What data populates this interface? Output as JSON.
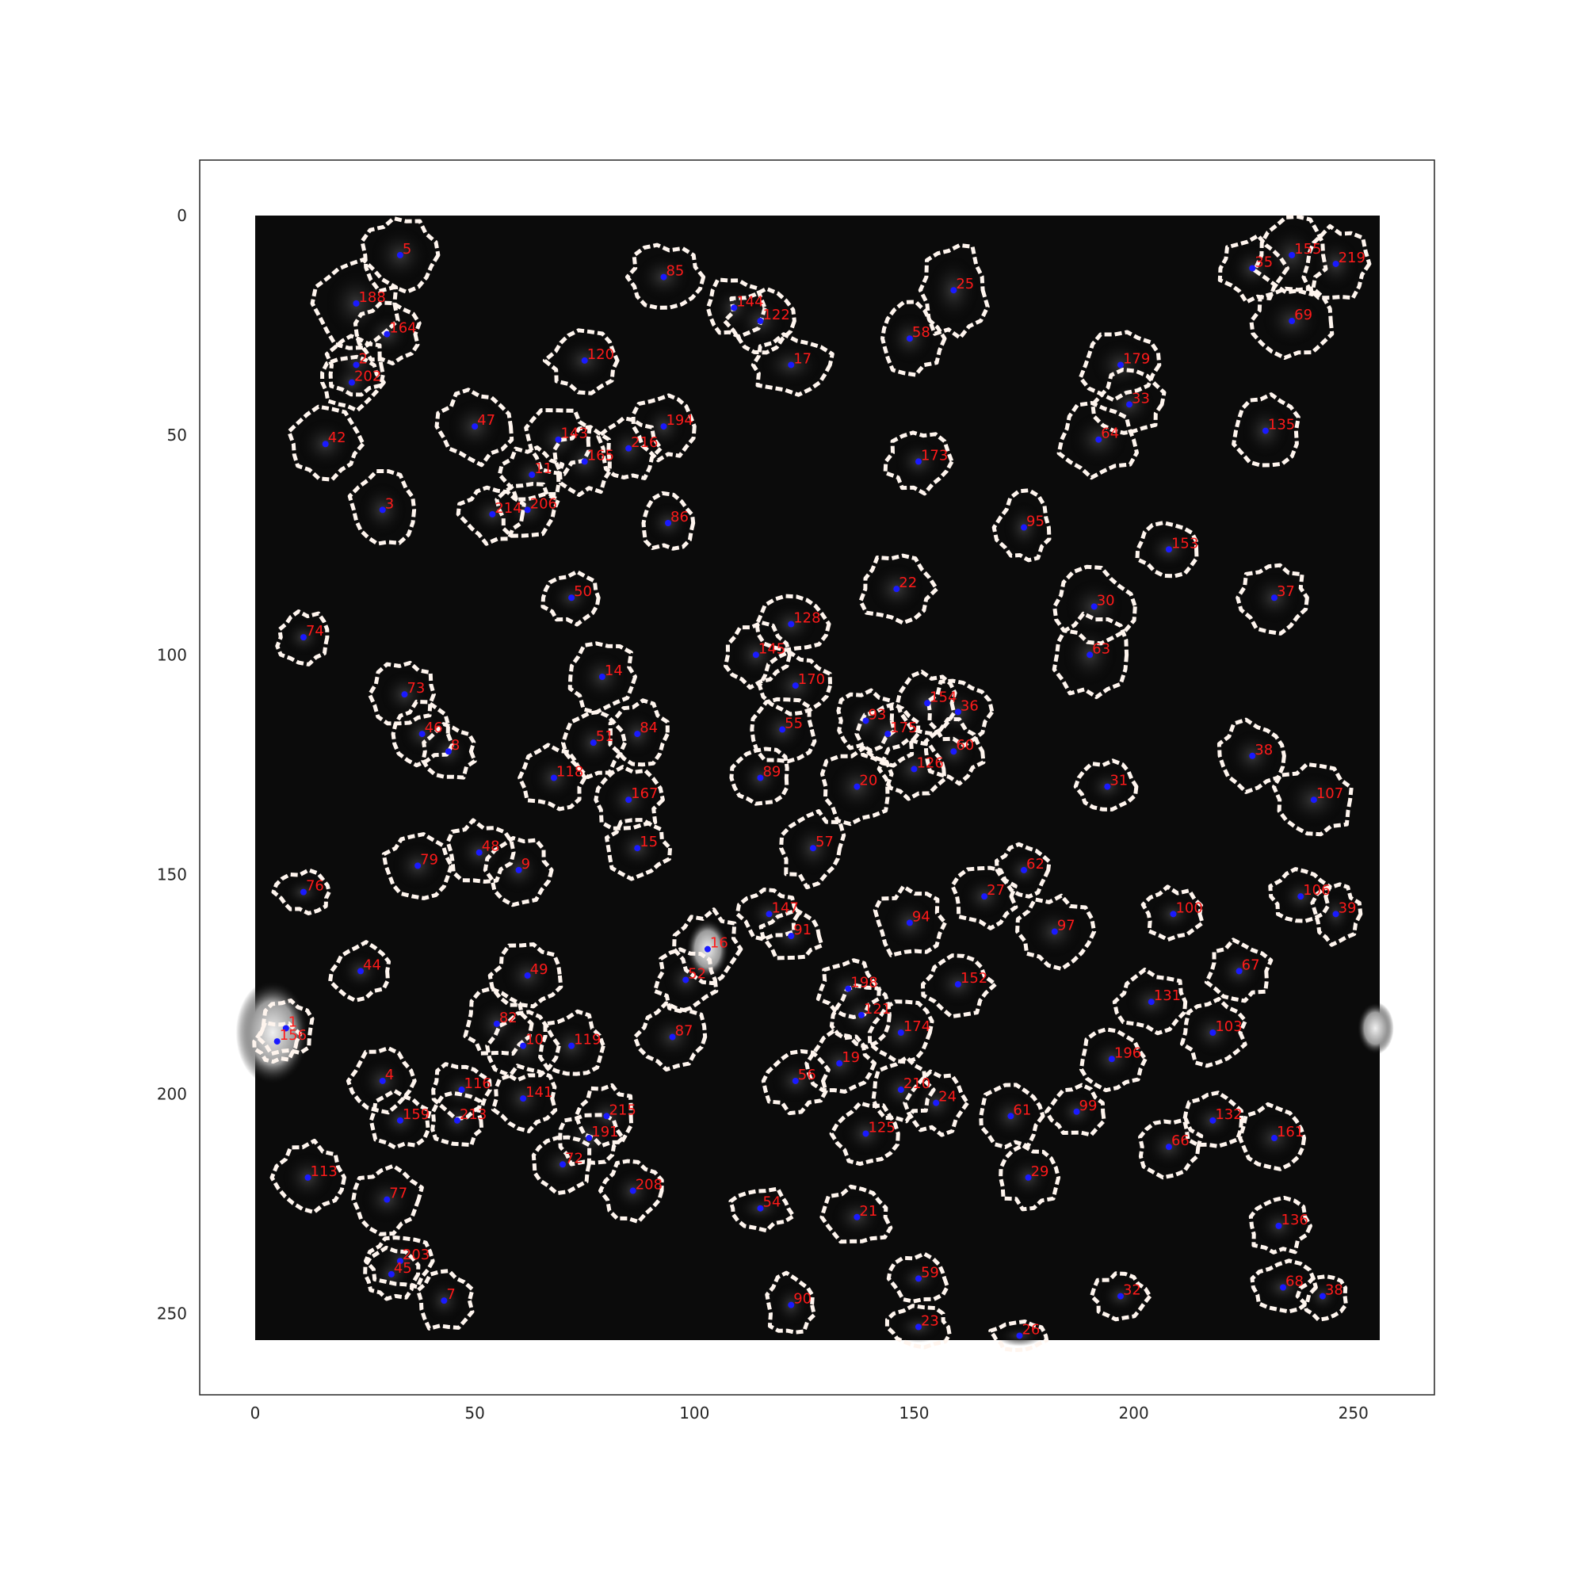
{
  "image": {
    "x_range": [
      0,
      256
    ],
    "y_range": [
      0,
      256
    ],
    "background": "#000000",
    "outline_color": "#fff5ee",
    "centroid_color": "#1a1aff",
    "label_color": "#ff1a1a",
    "frame_color": "#262626"
  },
  "axes": {
    "x_ticks": [
      {
        "value": 0,
        "label": "0"
      },
      {
        "value": 50,
        "label": "50"
      },
      {
        "value": 100,
        "label": "100"
      },
      {
        "value": 150,
        "label": "150"
      },
      {
        "value": 200,
        "label": "200"
      },
      {
        "value": 250,
        "label": "250"
      }
    ],
    "y_ticks": [
      {
        "value": 0,
        "label": "0"
      },
      {
        "value": 50,
        "label": "50"
      },
      {
        "value": 100,
        "label": "100"
      },
      {
        "value": 150,
        "label": "150"
      },
      {
        "value": 200,
        "label": "200"
      },
      {
        "value": 250,
        "label": "250"
      }
    ]
  },
  "rois": [
    {
      "id": "5",
      "x": 33,
      "y": 9,
      "w": 17,
      "h": 17
    },
    {
      "id": "188",
      "x": 23,
      "y": 20,
      "w": 18,
      "h": 20
    },
    {
      "id": "164",
      "x": 30,
      "y": 27,
      "w": 14,
      "h": 13
    },
    {
      "id": "2",
      "x": 23,
      "y": 34,
      "w": 13,
      "h": 13
    },
    {
      "id": "202",
      "x": 22,
      "y": 38,
      "w": 13,
      "h": 12
    },
    {
      "id": "42",
      "x": 16,
      "y": 52,
      "w": 16,
      "h": 15
    },
    {
      "id": "47",
      "x": 50,
      "y": 48,
      "w": 16,
      "h": 16
    },
    {
      "id": "143",
      "x": 69,
      "y": 51,
      "w": 14,
      "h": 14
    },
    {
      "id": "11",
      "x": 63,
      "y": 59,
      "w": 13,
      "h": 12
    },
    {
      "id": "165",
      "x": 75,
      "y": 56,
      "w": 13,
      "h": 14
    },
    {
      "id": "216",
      "x": 85,
      "y": 53,
      "w": 13,
      "h": 14
    },
    {
      "id": "194",
      "x": 93,
      "y": 48,
      "w": 13,
      "h": 14
    },
    {
      "id": "3",
      "x": 29,
      "y": 67,
      "w": 14,
      "h": 16
    },
    {
      "id": "214",
      "x": 54,
      "y": 68,
      "w": 14,
      "h": 12
    },
    {
      "id": "206",
      "x": 62,
      "y": 67,
      "w": 13,
      "h": 12
    },
    {
      "id": "86",
      "x": 94,
      "y": 70,
      "w": 13,
      "h": 12
    },
    {
      "id": "85",
      "x": 93,
      "y": 14,
      "w": 16,
      "h": 14
    },
    {
      "id": "144",
      "x": 109,
      "y": 21,
      "w": 13,
      "h": 13
    },
    {
      "id": "122",
      "x": 115,
      "y": 24,
      "w": 15,
      "h": 14
    },
    {
      "id": "17",
      "x": 122,
      "y": 34,
      "w": 18,
      "h": 13
    },
    {
      "id": "120",
      "x": 75,
      "y": 33,
      "w": 16,
      "h": 14
    },
    {
      "id": "25",
      "x": 159,
      "y": 17,
      "w": 15,
      "h": 20
    },
    {
      "id": "58",
      "x": 149,
      "y": 28,
      "w": 14,
      "h": 15
    },
    {
      "id": "173",
      "x": 151,
      "y": 56,
      "w": 14,
      "h": 13
    },
    {
      "id": "179",
      "x": 197,
      "y": 34,
      "w": 17,
      "h": 15
    },
    {
      "id": "33",
      "x": 199,
      "y": 43,
      "w": 15,
      "h": 14
    },
    {
      "id": "64",
      "x": 192,
      "y": 51,
      "w": 17,
      "h": 16
    },
    {
      "id": "155",
      "x": 236,
      "y": 9,
      "w": 16,
      "h": 18
    },
    {
      "id": "35",
      "x": 227,
      "y": 12,
      "w": 14,
      "h": 14
    },
    {
      "id": "219",
      "x": 246,
      "y": 11,
      "w": 14,
      "h": 16
    },
    {
      "id": "69",
      "x": 236,
      "y": 24,
      "w": 17,
      "h": 15
    },
    {
      "id": "135",
      "x": 230,
      "y": 49,
      "w": 14,
      "h": 16
    },
    {
      "id": "95",
      "x": 175,
      "y": 71,
      "w": 12,
      "h": 15
    },
    {
      "id": "153",
      "x": 208,
      "y": 76,
      "w": 14,
      "h": 12
    },
    {
      "id": "22",
      "x": 146,
      "y": 85,
      "w": 16,
      "h": 15
    },
    {
      "id": "30",
      "x": 191,
      "y": 89,
      "w": 17,
      "h": 16
    },
    {
      "id": "63",
      "x": 190,
      "y": 100,
      "w": 16,
      "h": 18
    },
    {
      "id": "37",
      "x": 232,
      "y": 87,
      "w": 15,
      "h": 15
    },
    {
      "id": "50",
      "x": 72,
      "y": 87,
      "w": 13,
      "h": 11
    },
    {
      "id": "74",
      "x": 11,
      "y": 96,
      "w": 12,
      "h": 11
    },
    {
      "id": "128",
      "x": 122,
      "y": 93,
      "w": 15,
      "h": 13
    },
    {
      "id": "145",
      "x": 114,
      "y": 100,
      "w": 14,
      "h": 14
    },
    {
      "id": "170",
      "x": 123,
      "y": 107,
      "w": 15,
      "h": 14
    },
    {
      "id": "14",
      "x": 79,
      "y": 105,
      "w": 15,
      "h": 15
    },
    {
      "id": "73",
      "x": 34,
      "y": 109,
      "w": 14,
      "h": 14
    },
    {
      "id": "46",
      "x": 38,
      "y": 118,
      "w": 13,
      "h": 13
    },
    {
      "id": "8",
      "x": 44,
      "y": 122,
      "w": 12,
      "h": 12
    },
    {
      "id": "51",
      "x": 77,
      "y": 120,
      "w": 13,
      "h": 14
    },
    {
      "id": "84",
      "x": 87,
      "y": 118,
      "w": 13,
      "h": 14
    },
    {
      "id": "118",
      "x": 68,
      "y": 128,
      "w": 14,
      "h": 14
    },
    {
      "id": "55",
      "x": 120,
      "y": 117,
      "w": 14,
      "h": 14
    },
    {
      "id": "93",
      "x": 139,
      "y": 115,
      "w": 13,
      "h": 13
    },
    {
      "id": "154",
      "x": 153,
      "y": 111,
      "w": 13,
      "h": 13
    },
    {
      "id": "36",
      "x": 160,
      "y": 113,
      "w": 14,
      "h": 14
    },
    {
      "id": "175",
      "x": 144,
      "y": 118,
      "w": 13,
      "h": 13
    },
    {
      "id": "60",
      "x": 159,
      "y": 122,
      "w": 13,
      "h": 13
    },
    {
      "id": "126",
      "x": 150,
      "y": 126,
      "w": 14,
      "h": 13
    },
    {
      "id": "89",
      "x": 115,
      "y": 128,
      "w": 13,
      "h": 13
    },
    {
      "id": "20",
      "x": 137,
      "y": 130,
      "w": 16,
      "h": 16
    },
    {
      "id": "167",
      "x": 85,
      "y": 133,
      "w": 14,
      "h": 14
    },
    {
      "id": "15",
      "x": 87,
      "y": 144,
      "w": 14,
      "h": 13
    },
    {
      "id": "31",
      "x": 194,
      "y": 130,
      "w": 13,
      "h": 11
    },
    {
      "id": "38",
      "x": 227,
      "y": 123,
      "w": 15,
      "h": 15
    },
    {
      "id": "107",
      "x": 241,
      "y": 133,
      "w": 18,
      "h": 16
    },
    {
      "id": "57",
      "x": 127,
      "y": 144,
      "w": 14,
      "h": 16
    },
    {
      "id": "48",
      "x": 51,
      "y": 145,
      "w": 14,
      "h": 13
    },
    {
      "id": "9",
      "x": 60,
      "y": 149,
      "w": 14,
      "h": 14
    },
    {
      "id": "79",
      "x": 37,
      "y": 148,
      "w": 15,
      "h": 14
    },
    {
      "id": "76",
      "x": 11,
      "y": 154,
      "w": 12,
      "h": 9
    },
    {
      "id": "62",
      "x": 175,
      "y": 149,
      "w": 12,
      "h": 11
    },
    {
      "id": "27",
      "x": 166,
      "y": 155,
      "w": 14,
      "h": 13
    },
    {
      "id": "97",
      "x": 182,
      "y": 163,
      "w": 16,
      "h": 15
    },
    {
      "id": "94",
      "x": 149,
      "y": 161,
      "w": 15,
      "h": 15
    },
    {
      "id": "147",
      "x": 117,
      "y": 159,
      "w": 13,
      "h": 11
    },
    {
      "id": "91",
      "x": 122,
      "y": 164,
      "w": 13,
      "h": 11
    },
    {
      "id": "100",
      "x": 209,
      "y": 159,
      "w": 13,
      "h": 11
    },
    {
      "id": "106",
      "x": 238,
      "y": 155,
      "w": 13,
      "h": 12
    },
    {
      "id": "39",
      "x": 246,
      "y": 159,
      "w": 10,
      "h": 13
    },
    {
      "id": "16",
      "x": 103,
      "y": 167,
      "w": 14,
      "h": 16
    },
    {
      "id": "52",
      "x": 98,
      "y": 174,
      "w": 13,
      "h": 13
    },
    {
      "id": "49",
      "x": 62,
      "y": 173,
      "w": 15,
      "h": 14
    },
    {
      "id": "44",
      "x": 24,
      "y": 172,
      "w": 13,
      "h": 12
    },
    {
      "id": "67",
      "x": 224,
      "y": 172,
      "w": 14,
      "h": 13
    },
    {
      "id": "152",
      "x": 160,
      "y": 175,
      "w": 15,
      "h": 13
    },
    {
      "id": "198",
      "x": 135,
      "y": 176,
      "w": 13,
      "h": 12
    },
    {
      "id": "131",
      "x": 204,
      "y": 179,
      "w": 15,
      "h": 13
    },
    {
      "id": "121",
      "x": 138,
      "y": 182,
      "w": 13,
      "h": 13
    },
    {
      "id": "1",
      "x": 7,
      "y": 185,
      "w": 12,
      "h": 12
    },
    {
      "id": "156",
      "x": 5,
      "y": 188,
      "w": 10,
      "h": 9
    },
    {
      "id": "82",
      "x": 55,
      "y": 184,
      "w": 14,
      "h": 15
    },
    {
      "id": "10",
      "x": 61,
      "y": 189,
      "w": 15,
      "h": 15
    },
    {
      "id": "119",
      "x": 72,
      "y": 189,
      "w": 14,
      "h": 14
    },
    {
      "id": "87",
      "x": 95,
      "y": 187,
      "w": 15,
      "h": 14
    },
    {
      "id": "174",
      "x": 147,
      "y": 186,
      "w": 14,
      "h": 14
    },
    {
      "id": "103",
      "x": 218,
      "y": 186,
      "w": 14,
      "h": 14
    },
    {
      "id": "19",
      "x": 133,
      "y": 193,
      "w": 14,
      "h": 13
    },
    {
      "id": "196",
      "x": 195,
      "y": 192,
      "w": 14,
      "h": 13
    },
    {
      "id": "4",
      "x": 29,
      "y": 197,
      "w": 14,
      "h": 14
    },
    {
      "id": "116",
      "x": 47,
      "y": 199,
      "w": 13,
      "h": 12
    },
    {
      "id": "141",
      "x": 61,
      "y": 201,
      "w": 14,
      "h": 14
    },
    {
      "id": "56",
      "x": 123,
      "y": 197,
      "w": 14,
      "h": 13
    },
    {
      "id": "210",
      "x": 147,
      "y": 199,
      "w": 13,
      "h": 13
    },
    {
      "id": "24",
      "x": 155,
      "y": 202,
      "w": 13,
      "h": 13
    },
    {
      "id": "61",
      "x": 172,
      "y": 205,
      "w": 14,
      "h": 14
    },
    {
      "id": "99",
      "x": 187,
      "y": 204,
      "w": 12,
      "h": 11
    },
    {
      "id": "159",
      "x": 33,
      "y": 206,
      "w": 13,
      "h": 12
    },
    {
      "id": "213",
      "x": 46,
      "y": 206,
      "w": 12,
      "h": 12
    },
    {
      "id": "215",
      "x": 80,
      "y": 205,
      "w": 13,
      "h": 13
    },
    {
      "id": "191",
      "x": 76,
      "y": 210,
      "w": 14,
      "h": 12
    },
    {
      "id": "125",
      "x": 139,
      "y": 209,
      "w": 14,
      "h": 13
    },
    {
      "id": "132",
      "x": 218,
      "y": 206,
      "w": 13,
      "h": 12
    },
    {
      "id": "66",
      "x": 208,
      "y": 212,
      "w": 14,
      "h": 13
    },
    {
      "id": "161",
      "x": 232,
      "y": 210,
      "w": 15,
      "h": 14
    },
    {
      "id": "72",
      "x": 70,
      "y": 216,
      "w": 14,
      "h": 12
    },
    {
      "id": "113",
      "x": 12,
      "y": 219,
      "w": 15,
      "h": 15
    },
    {
      "id": "29",
      "x": 176,
      "y": 219,
      "w": 13,
      "h": 13
    },
    {
      "id": "208",
      "x": 86,
      "y": 222,
      "w": 13,
      "h": 13
    },
    {
      "id": "77",
      "x": 30,
      "y": 224,
      "w": 15,
      "h": 14
    },
    {
      "id": "54",
      "x": 115,
      "y": 226,
      "w": 14,
      "h": 9
    },
    {
      "id": "21",
      "x": 137,
      "y": 228,
      "w": 15,
      "h": 13
    },
    {
      "id": "136",
      "x": 233,
      "y": 230,
      "w": 13,
      "h": 12
    },
    {
      "id": "203",
      "x": 33,
      "y": 238,
      "w": 14,
      "h": 12
    },
    {
      "id": "45",
      "x": 31,
      "y": 241,
      "w": 12,
      "h": 11
    },
    {
      "id": "7",
      "x": 43,
      "y": 247,
      "w": 12,
      "h": 13
    },
    {
      "id": "59",
      "x": 151,
      "y": 242,
      "w": 13,
      "h": 10
    },
    {
      "id": "90",
      "x": 122,
      "y": 248,
      "w": 11,
      "h": 13
    },
    {
      "id": "32",
      "x": 197,
      "y": 246,
      "w": 12,
      "h": 10
    },
    {
      "id": "68",
      "x": 234,
      "y": 244,
      "w": 14,
      "h": 11
    },
    {
      "id": "38b",
      "x": 243,
      "y": 246,
      "w": 10,
      "h": 10
    },
    {
      "id": "23",
      "x": 151,
      "y": 253,
      "w": 14,
      "h": 9
    },
    {
      "id": "26",
      "x": 174,
      "y": 255,
      "w": 13,
      "h": 6
    }
  ]
}
